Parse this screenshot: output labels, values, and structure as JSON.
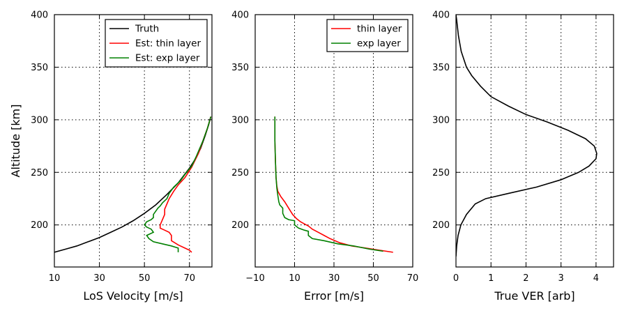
{
  "chart_data": [
    {
      "type": "line",
      "xlabel": "LoS Velocity [m/s]",
      "ylabel": "Altitude [km]",
      "xlim": [
        10,
        80
      ],
      "ylim": [
        160,
        400
      ],
      "xticks": [
        10,
        30,
        50,
        70
      ],
      "yticks": [
        200,
        250,
        300,
        350,
        400
      ],
      "grid": true,
      "legend": "top-right",
      "series": [
        {
          "name": "Truth",
          "color": "#000000",
          "points": [
            [
              10,
              174
            ],
            [
              15,
              177
            ],
            [
              20,
              180
            ],
            [
              25,
              184
            ],
            [
              30,
              188
            ],
            [
              35,
              193
            ],
            [
              40,
              198
            ],
            [
              45,
              204
            ],
            [
              50,
              211
            ],
            [
              55,
              219
            ],
            [
              60,
              229
            ],
            [
              65,
              240
            ],
            [
              70,
              254
            ],
            [
              73,
              264
            ],
            [
              75,
              273
            ],
            [
              77,
              285
            ],
            [
              78.5,
              295
            ],
            [
              79.5,
              303
            ]
          ]
        },
        {
          "name": "Est: thin layer",
          "color": "#ff0000",
          "points": [
            [
              71,
              174
            ],
            [
              70,
              176
            ],
            [
              68,
              178
            ],
            [
              65,
              181
            ],
            [
              62,
              185
            ],
            [
              62,
              190
            ],
            [
              61,
              193
            ],
            [
              59,
              195
            ],
            [
              57,
              197
            ],
            [
              57,
              200
            ],
            [
              58,
              205
            ],
            [
              59,
              210
            ],
            [
              59,
              215
            ],
            [
              60,
              220
            ],
            [
              61,
              225
            ],
            [
              63,
              232
            ],
            [
              65,
              238
            ],
            [
              68,
              245
            ],
            [
              71,
              255
            ],
            [
              74,
              268
            ],
            [
              76,
              280
            ],
            [
              78,
              292
            ],
            [
              79.5,
              303
            ]
          ]
        },
        {
          "name": "Est: exp layer",
          "color": "#008000",
          "points": [
            [
              65,
              174
            ],
            [
              65,
              178
            ],
            [
              62,
              180
            ],
            [
              58,
              182
            ],
            [
              54,
              184
            ],
            [
              52,
              187
            ],
            [
              51,
              190
            ],
            [
              54,
              193
            ],
            [
              53,
              196
            ],
            [
              51,
              198
            ],
            [
              50,
              200
            ],
            [
              51,
              203
            ],
            [
              53,
              205
            ],
            [
              54,
              207
            ],
            [
              54,
              210
            ],
            [
              55,
              213
            ],
            [
              56,
              216
            ],
            [
              57,
              218
            ],
            [
              58,
              221
            ],
            [
              60,
              225
            ],
            [
              61,
              230
            ],
            [
              63,
              236
            ],
            [
              66,
              242
            ],
            [
              68,
              248
            ],
            [
              71,
              256
            ],
            [
              73,
              265
            ],
            [
              76,
              280
            ],
            [
              78,
              292
            ],
            [
              79.5,
              303
            ]
          ]
        }
      ]
    },
    {
      "type": "line",
      "xlabel": "Error [m/s]",
      "ylabel": "",
      "xlim": [
        -10,
        70
      ],
      "ylim": [
        160,
        400
      ],
      "xticks": [
        -10,
        10,
        30,
        50,
        70
      ],
      "xtick_labels": [
        "−10",
        "10",
        "30",
        "50",
        "70"
      ],
      "yticks": [
        200,
        250,
        300,
        350,
        400
      ],
      "grid": true,
      "legend": "top-right",
      "series": [
        {
          "name": "thin layer",
          "color": "#ff0000",
          "points": [
            [
              0,
              303
            ],
            [
              0,
              280
            ],
            [
              0.3,
              260
            ],
            [
              0.6,
              245
            ],
            [
              1,
              237
            ],
            [
              1.5,
              232
            ],
            [
              3,
              227
            ],
            [
              5,
              222
            ],
            [
              7,
              216
            ],
            [
              9,
              210
            ],
            [
              11,
              206
            ],
            [
              13,
              203
            ],
            [
              15,
              201
            ],
            [
              17,
              199
            ],
            [
              19,
              196
            ],
            [
              22,
              193
            ],
            [
              25,
              190
            ],
            [
              28,
              187
            ],
            [
              33,
              183
            ],
            [
              39,
              180
            ],
            [
              46,
              178
            ],
            [
              53,
              176
            ],
            [
              60,
              174
            ]
          ]
        },
        {
          "name": "exp layer",
          "color": "#008000",
          "points": [
            [
              0,
              303
            ],
            [
              0,
              280
            ],
            [
              0.3,
              260
            ],
            [
              0.6,
              245
            ],
            [
              1,
              235
            ],
            [
              1.5,
              228
            ],
            [
              2,
              222
            ],
            [
              2.5,
              219
            ],
            [
              4,
              216
            ],
            [
              4,
              211
            ],
            [
              5,
              207
            ],
            [
              7,
              205
            ],
            [
              10,
              204
            ],
            [
              10,
              200
            ],
            [
              12,
              197
            ],
            [
              15,
              195
            ],
            [
              17,
              194
            ],
            [
              17,
              190
            ],
            [
              19,
              187
            ],
            [
              25,
              185
            ],
            [
              32,
              182
            ],
            [
              40,
              180
            ],
            [
              48,
              177
            ],
            [
              55,
              175
            ]
          ]
        }
      ]
    },
    {
      "type": "line",
      "xlabel": "True VER [arb]",
      "ylabel": "",
      "xlim": [
        0,
        4.5
      ],
      "ylim": [
        160,
        400
      ],
      "xticks": [
        0,
        1,
        2,
        3,
        4
      ],
      "yticks": [
        200,
        250,
        300,
        350,
        400
      ],
      "grid": true,
      "series": [
        {
          "name": "",
          "color": "#000000",
          "points": [
            [
              0,
              170
            ],
            [
              0.02,
              180
            ],
            [
              0.06,
              190
            ],
            [
              0.14,
              200
            ],
            [
              0.3,
              210
            ],
            [
              0.55,
              220
            ],
            [
              0.85,
              225
            ],
            [
              1.5,
              230
            ],
            [
              2.3,
              236
            ],
            [
              3.0,
              243
            ],
            [
              3.5,
              250
            ],
            [
              3.8,
              256
            ],
            [
              4.0,
              263
            ],
            [
              4.02,
              268
            ],
            [
              3.95,
              275
            ],
            [
              3.7,
              282
            ],
            [
              3.2,
              290
            ],
            [
              2.6,
              298
            ],
            [
              2.0,
              305
            ],
            [
              1.5,
              313
            ],
            [
              1.0,
              322
            ],
            [
              0.7,
              332
            ],
            [
              0.45,
              342
            ],
            [
              0.3,
              350
            ],
            [
              0.15,
              365
            ],
            [
              0.07,
              380
            ],
            [
              0.02,
              395
            ],
            [
              0,
              400
            ]
          ]
        }
      ]
    }
  ]
}
